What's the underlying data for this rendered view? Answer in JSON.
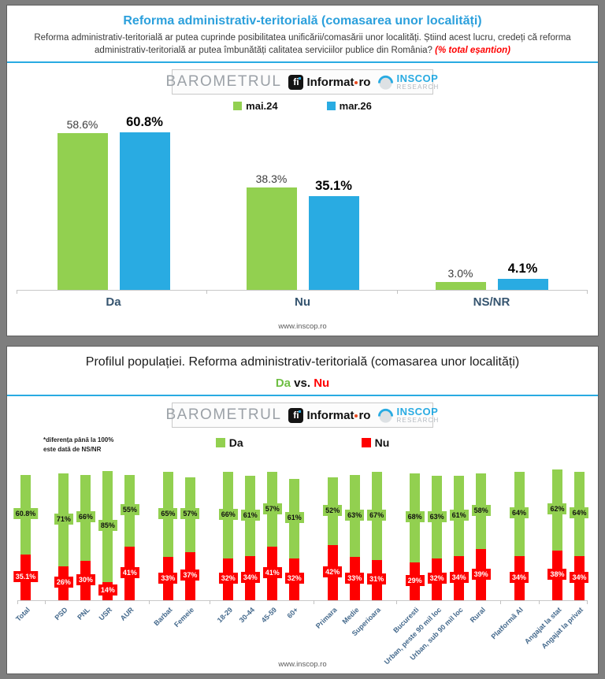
{
  "logo": {
    "barometrul": "BAROMETRUL",
    "informat": "Informat",
    "tld": "ro",
    "informat_icon_glyph": "fi",
    "inscop": "INSCOP",
    "research": "RESEARCH"
  },
  "panel1": {
    "title": "Reforma administrativ-teritorială (comasarea unor localități)",
    "subtitle": "Reforma administrativ-teritorială ar putea cuprinde posibilitatea unificării/comasării unor localități. Știind acest lucru, credeți că reforma administrativ-teritorială ar putea îmbunătăți calitatea serviciilor publice din România? ",
    "subtitle_note": "(% total eșantion)",
    "footer": "www.inscop.ro"
  },
  "panel2": {
    "title": "Profilul populației. Reforma administrativ-teritorială (comasarea unor localități)",
    "vs_da": "Da",
    "vs_mid": " vs. ",
    "vs_nu": "Nu",
    "note_line1": "*diferența până la 100%",
    "note_line2": "este dată de NS/NR",
    "footer": "www.inscop.ro"
  },
  "chart_data": [
    {
      "type": "bar",
      "title": "Reforma administrativ-teritorială (comasarea unor localități)",
      "categories": [
        "Da",
        "Nu",
        "NS/NR"
      ],
      "series": [
        {
          "name": "mai.24",
          "color": "#92D050",
          "values": [
            58.6,
            38.3,
            3.0
          ],
          "labels": [
            "58.6%",
            "38.3%",
            "3.0%"
          ]
        },
        {
          "name": "mar.26",
          "color": "#29ABE2",
          "values": [
            60.8,
            35.1,
            4.1
          ],
          "labels": [
            "60.8%",
            "35.1%",
            "4.1%"
          ]
        }
      ],
      "ylim": [
        0,
        65
      ],
      "grid": false,
      "legend_position": "top",
      "value_suffix": "%"
    },
    {
      "type": "stacked-bar",
      "title": "Profilul populației. Reforma administrativ-teritorială (comasarea unor localități)",
      "subtitle": "Da vs. Nu",
      "note": "*diferența până la 100% este dată de NS/NR",
      "series_names": [
        "Da",
        "Nu"
      ],
      "colors": {
        "da": "#92D050",
        "nu": "#FE0000"
      },
      "ylim": [
        0,
        100
      ],
      "grid": false,
      "legend_position": "top",
      "groups": [
        {
          "items": [
            {
              "label": "Total",
              "da": 60.8,
              "nu": 35.1,
              "da_text": "60.8%",
              "nu_text": "35.1%"
            }
          ]
        },
        {
          "items": [
            {
              "label": "PSD",
              "da": 71,
              "nu": 26,
              "da_text": "71%",
              "nu_text": "26%"
            },
            {
              "label": "PNL",
              "da": 66,
              "nu": 30,
              "da_text": "66%",
              "nu_text": "30%"
            },
            {
              "label": "USR",
              "da": 85,
              "nu": 14,
              "da_text": "85%",
              "nu_text": "14%"
            },
            {
              "label": "AUR",
              "da": 55,
              "nu": 41,
              "da_text": "55%",
              "nu_text": "41%"
            }
          ]
        },
        {
          "items": [
            {
              "label": "Barbat",
              "da": 65,
              "nu": 33,
              "da_text": "65%",
              "nu_text": "33%"
            },
            {
              "label": "Femeie",
              "da": 57,
              "nu": 37,
              "da_text": "57%",
              "nu_text": "37%"
            }
          ]
        },
        {
          "items": [
            {
              "label": "18-29",
              "da": 66,
              "nu": 32,
              "da_text": "66%",
              "nu_text": "32%"
            },
            {
              "label": "30-44",
              "da": 61,
              "nu": 34,
              "da_text": "61%",
              "nu_text": "34%"
            },
            {
              "label": "45-59",
              "da": 57,
              "nu": 41,
              "da_text": "57%",
              "nu_text": "41%"
            },
            {
              "label": "60+",
              "da": 61,
              "nu": 32,
              "da_text": "61%",
              "nu_text": "32%"
            }
          ]
        },
        {
          "items": [
            {
              "label": "Primara",
              "da": 52,
              "nu": 42,
              "da_text": "52%",
              "nu_text": "42%"
            },
            {
              "label": "Medie",
              "da": 63,
              "nu": 33,
              "da_text": "63%",
              "nu_text": "33%"
            },
            {
              "label": "Superioara",
              "da": 67,
              "nu": 31,
              "da_text": "67%",
              "nu_text": "31%"
            }
          ]
        },
        {
          "items": [
            {
              "label": "Bucuresti",
              "da": 68,
              "nu": 29,
              "da_text": "68%",
              "nu_text": "29%"
            },
            {
              "label": "Urban, peste 90 mil loc",
              "da": 63,
              "nu": 32,
              "da_text": "63%",
              "nu_text": "32%"
            },
            {
              "label": "Urban, sub 90 mil loc",
              "da": 61,
              "nu": 34,
              "da_text": "61%",
              "nu_text": "34%"
            },
            {
              "label": "Rural",
              "da": 58,
              "nu": 39,
              "da_text": "58%",
              "nu_text": "39%"
            }
          ]
        },
        {
          "items": [
            {
              "label": "Platformă AI",
              "da": 64,
              "nu": 34,
              "da_text": "64%",
              "nu_text": "34%"
            }
          ]
        },
        {
          "items": [
            {
              "label": "Angajat la stat",
              "da": 62,
              "nu": 38,
              "da_text": "62%",
              "nu_text": "38%"
            },
            {
              "label": "Angajat la privat",
              "da": 64,
              "nu": 34,
              "da_text": "64%",
              "nu_text": "34%"
            }
          ]
        }
      ]
    }
  ],
  "ui_colors": {
    "title_blue": "#2CA0DC",
    "rule_blue": "#29ABE2",
    "red_accent": "#FF0000",
    "green_da": "#92D050",
    "blue_mar26": "#29ABE2",
    "red_nu": "#FE0000",
    "category_label_blue": "#35546F",
    "axis_label_blue": "#44698C"
  }
}
